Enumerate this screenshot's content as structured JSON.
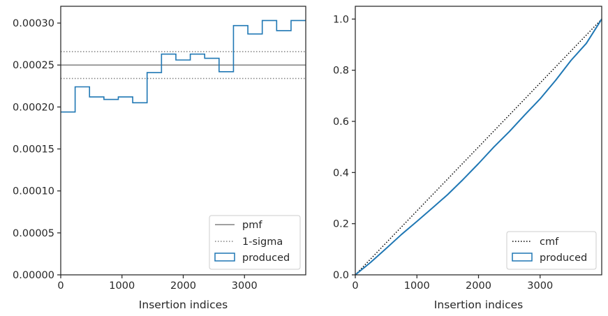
{
  "chart_data": [
    {
      "type": "line",
      "xlabel": "Insertion indices",
      "ylabel": "",
      "xlim": [
        0,
        4000
      ],
      "ylim": [
        0,
        0.00032
      ],
      "x_ticks": [
        {
          "value": 0,
          "label": "0"
        },
        {
          "value": 1000,
          "label": "1000"
        },
        {
          "value": 2000,
          "label": "2000"
        },
        {
          "value": 3000,
          "label": "3000"
        }
      ],
      "y_ticks": [
        {
          "value": 0,
          "label": "0.00000"
        },
        {
          "value": 5e-05,
          "label": "0.00005"
        },
        {
          "value": 0.0001,
          "label": "0.00010"
        },
        {
          "value": 0.00015,
          "label": "0.00015"
        },
        {
          "value": 0.0002,
          "label": "0.00020"
        },
        {
          "value": 0.00025,
          "label": "0.00025"
        },
        {
          "value": 0.0003,
          "label": "0.00030"
        }
      ],
      "legend_position": "lower-right",
      "series": [
        {
          "name": "pmf",
          "style": "solid",
          "color": "#808080",
          "y_constant": 0.00025
        },
        {
          "name": "1-sigma",
          "style": "dotted",
          "color": "#808080",
          "y_constants": [
            0.000234,
            0.000266
          ]
        },
        {
          "name": "produced",
          "style": "step-histogram",
          "color": "#1f77b4",
          "bin_edges": [
            0,
            235,
            470,
            705,
            940,
            1175,
            1410,
            1645,
            1880,
            2115,
            2350,
            2585,
            2820,
            3055,
            3290,
            3525,
            3760,
            4000
          ],
          "values": [
            0.000194,
            0.000224,
            0.000212,
            0.000209,
            0.000212,
            0.000205,
            0.000241,
            0.000263,
            0.000256,
            0.000263,
            0.000258,
            0.000242,
            0.000297,
            0.000287,
            0.000303,
            0.000291,
            0.000303
          ]
        }
      ]
    },
    {
      "type": "line",
      "xlabel": "Insertion indices",
      "ylabel": "",
      "xlim": [
        0,
        4000
      ],
      "ylim": [
        0,
        1.05
      ],
      "x_ticks": [
        {
          "value": 0,
          "label": "0"
        },
        {
          "value": 1000,
          "label": "1000"
        },
        {
          "value": 2000,
          "label": "2000"
        },
        {
          "value": 3000,
          "label": "3000"
        }
      ],
      "y_ticks": [
        {
          "value": 0,
          "label": "0.0"
        },
        {
          "value": 0.2,
          "label": "0.2"
        },
        {
          "value": 0.4,
          "label": "0.4"
        },
        {
          "value": 0.6,
          "label": "0.6"
        },
        {
          "value": 0.8,
          "label": "0.8"
        },
        {
          "value": 1.0,
          "label": "1.0"
        }
      ],
      "legend_position": "lower-right",
      "series": [
        {
          "name": "cmf",
          "style": "dotted",
          "color": "#000000",
          "x": [
            0,
            4000
          ],
          "y": [
            0,
            1.0
          ]
        },
        {
          "name": "produced",
          "style": "step-cumulative",
          "color": "#1f77b4",
          "x": [
            0,
            250,
            500,
            750,
            1000,
            1250,
            1500,
            1750,
            2000,
            2250,
            2500,
            2750,
            3000,
            3250,
            3500,
            3750,
            4000
          ],
          "y": [
            0.0,
            0.049,
            0.103,
            0.158,
            0.209,
            0.261,
            0.314,
            0.373,
            0.435,
            0.5,
            0.56,
            0.625,
            0.688,
            0.76,
            0.838,
            0.905,
            1.0
          ]
        }
      ]
    }
  ]
}
